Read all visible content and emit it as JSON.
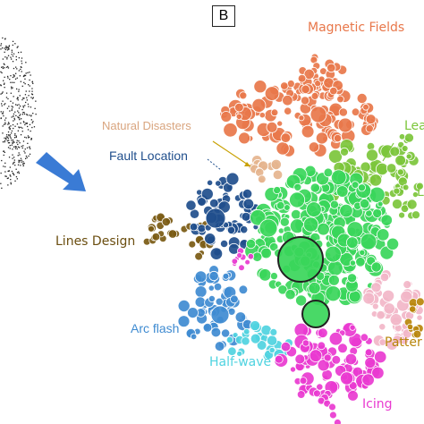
{
  "panel": {
    "letter": "B"
  },
  "labels": {
    "magnetic_fields": "Magnetic Fields",
    "natural_disasters": "Natural Disasters",
    "fault_location": "Fault Location",
    "lines_design": "Lines Design",
    "arc_flash": "Arc flash",
    "half_wave": "Half-wave",
    "icing": "Icing",
    "patter": "Patter",
    "lea": "Lea",
    "l_cut": "L"
  },
  "colors": {
    "magnetic_fields": "#e8774a",
    "natural_disasters": "#e5b48e",
    "fault_location": "#1f4e8c",
    "lines_design": "#7a5a12",
    "arc_flash": "#3f8bd1",
    "half_wave": "#4fd3e0",
    "icing": "#e93ad0",
    "patter": "#b8860b",
    "lea": "#7cc63b",
    "central": "#39d65a",
    "arrow": "#3a7bd5"
  }
}
